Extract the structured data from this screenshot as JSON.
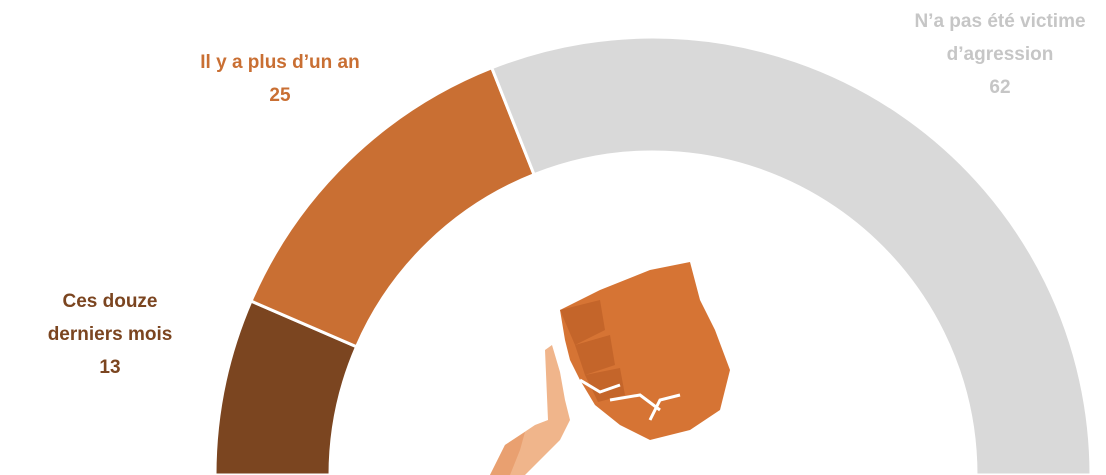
{
  "chart_data": {
    "type": "pie",
    "categories": [
      "Ces douze derniers mois",
      "Il y a plus d’un an",
      "N’a pas été victime d’agression"
    ],
    "values": [
      13,
      25,
      62
    ],
    "colors": [
      "#7b4520",
      "#c96f33",
      "#d9d9d9"
    ],
    "label_colors": [
      "#7b4520",
      "#c96f33",
      "#c6c6c6"
    ]
  }
}
